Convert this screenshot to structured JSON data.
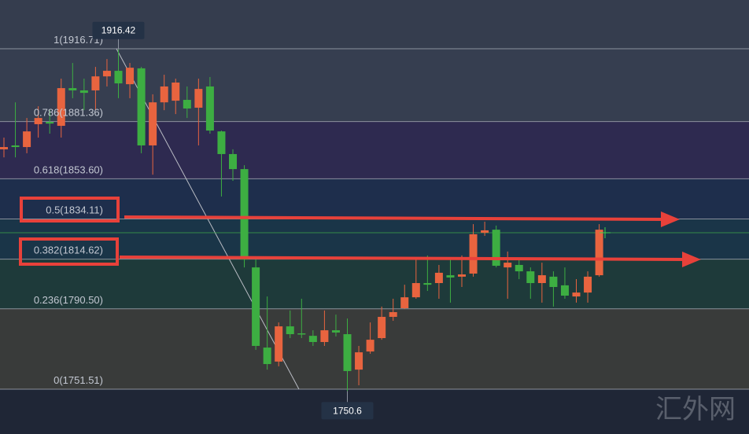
{
  "chart_data": {
    "type": "candlestick",
    "ylim": [
      1729.76,
      1940.36
    ],
    "up_color": "#e8643f",
    "down_color": "#3dae42",
    "fib_levels": [
      {
        "value": 1916.71,
        "label": "1(1916.71)",
        "color": "#363e50"
      },
      {
        "value": 1881.36,
        "label": "0.786(1881.36)",
        "color": "#2e2a50"
      },
      {
        "value": 1853.6,
        "label": "0.618(1853.60)",
        "color": "#1e2e4c"
      },
      {
        "value": 1834.11,
        "label": "0.5(1834.11)",
        "color": "#1a3548"
      },
      {
        "value": 1814.62,
        "label": "0.382(1814.62)",
        "color": "#1e3a3a"
      },
      {
        "value": 1790.5,
        "label": "0.236(1790.50)",
        "color": "#393b3a"
      },
      {
        "value": 1751.51,
        "label": "0(1751.51)",
        "color": "#3a2e31"
      }
    ],
    "annotations": [
      {
        "value": 1916.42,
        "label": "1916.42"
      },
      {
        "value": 1750.6,
        "label": "1750.6"
      }
    ],
    "watermark": "汇外网",
    "open": [
      1867.9,
      1869.8,
      1869.0,
      1880.1,
      1881.2,
      1879.3,
      1897.6,
      1896.5,
      1896.5,
      1903.3,
      1906.0,
      1899.5,
      1907.2,
      1869.8,
      1890.7,
      1891.5,
      1891.9,
      1888.1,
      1898.4,
      1876.6,
      1865.6,
      1858.3,
      1810.6,
      1771.7,
      1764.9,
      1782.0,
      1778.6,
      1777.4,
      1774.4,
      1780.1,
      1778.2,
      1761.0,
      1769.8,
      1776.3,
      1786.6,
      1790.8,
      1796.1,
      1803.0,
      1803.0,
      1806.8,
      1806.1,
      1807.6,
      1827.4,
      1828.9,
      1810.6,
      1811.8,
      1808.7,
      1803.0,
      1806.1,
      1801.9,
      1796.5,
      1798.4,
      1806.8
    ],
    "high": [
      1873.6,
      1890.7,
      1883.1,
      1888.8,
      1886.9,
      1902.2,
      1909.8,
      1902.2,
      1907.9,
      1911.7,
      1916.42,
      1909.8,
      1907.9,
      1894.6,
      1904.1,
      1902.2,
      1898.4,
      1902.2,
      1903.0,
      1877.0,
      1867.9,
      1860.2,
      1814.4,
      1796.5,
      1783.9,
      1789.7,
      1795.4,
      1780.1,
      1789.7,
      1787.7,
      1785.8,
      1772.5,
      1783.9,
      1791.6,
      1795.4,
      1802.2,
      1814.4,
      1816.4,
      1811.8,
      1814.4,
      1816.4,
      1831.6,
      1832.8,
      1830.9,
      1818.3,
      1814.4,
      1810.6,
      1812.9,
      1808.7,
      1810.6,
      1804.9,
      1808.7,
      1831.6
    ],
    "low": [
      1864.0,
      1864.0,
      1866.0,
      1873.6,
      1875.5,
      1873.6,
      1892.7,
      1886.9,
      1886.9,
      1898.4,
      1892.7,
      1892.7,
      1866.0,
      1855.6,
      1886.9,
      1885.0,
      1883.1,
      1869.8,
      1875.5,
      1845.0,
      1852.6,
      1810.6,
      1770.6,
      1761.0,
      1762.6,
      1776.3,
      1776.3,
      1772.5,
      1772.5,
      1777.1,
      1750.6,
      1753.4,
      1768.7,
      1775.5,
      1784.7,
      1790.4,
      1795.4,
      1799.2,
      1795.4,
      1793.5,
      1801.1,
      1806.1,
      1825.9,
      1810.6,
      1795.4,
      1804.9,
      1795.4,
      1793.5,
      1791.6,
      1795.4,
      1793.5,
      1793.5,
      1806.1
    ],
    "close": [
      1869.0,
      1869.0,
      1876.6,
      1883.1,
      1880.4,
      1897.6,
      1896.5,
      1895.3,
      1903.3,
      1906.0,
      1899.9,
      1907.5,
      1869.8,
      1890.7,
      1898.4,
      1900.3,
      1887.7,
      1897.2,
      1877.0,
      1865.6,
      1858.3,
      1814.4,
      1772.5,
      1763.7,
      1782.0,
      1778.2,
      1778.2,
      1774.4,
      1780.1,
      1779.0,
      1760.3,
      1769.4,
      1775.5,
      1786.6,
      1788.9,
      1796.1,
      1803.0,
      1802.2,
      1808.0,
      1805.7,
      1807.2,
      1826.7,
      1828.6,
      1811.4,
      1812.9,
      1808.7,
      1803.0,
      1806.8,
      1801.1,
      1796.9,
      1798.4,
      1806.1,
      1828.9
    ]
  }
}
